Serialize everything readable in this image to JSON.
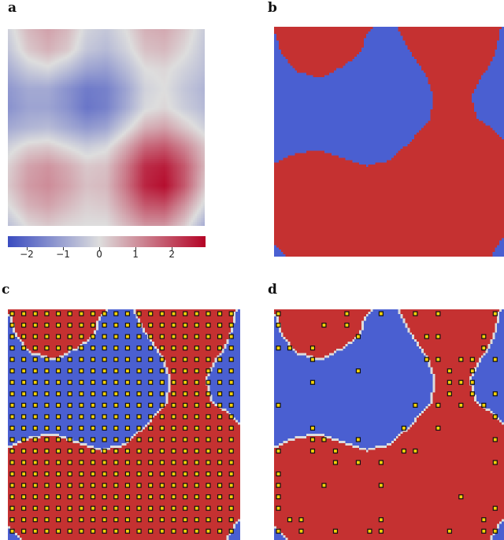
{
  "panels": {
    "a": {
      "label": "a"
    },
    "b": {
      "label": "b"
    },
    "c": {
      "label": "c"
    },
    "d": {
      "label": "d"
    }
  },
  "chart_data": [
    {
      "panel": "a",
      "type": "heatmap",
      "colormap": "coolwarm",
      "colors": {
        "low": "#3b4cc0",
        "mid": "#dddddd",
        "high": "#b40426"
      },
      "value_range": [
        -2.52,
        2.93
      ],
      "grid_note_rows": "top to bottom",
      "values": [
        [
          -0.2,
          0.5,
          0.8,
          0.5,
          -0.2,
          -0.4,
          0.0,
          0.6,
          0.7,
          0.3,
          -0.3
        ],
        [
          -0.4,
          0.3,
          0.6,
          0.3,
          -0.4,
          -0.6,
          -0.2,
          0.4,
          0.5,
          0.1,
          -0.4
        ],
        [
          -0.8,
          -0.3,
          -0.1,
          -0.5,
          -1.0,
          -1.1,
          -0.6,
          0.0,
          0.1,
          -0.2,
          -0.5
        ],
        [
          -1.2,
          -0.9,
          -0.9,
          -1.3,
          -1.7,
          -1.6,
          -1.0,
          -0.2,
          0.0,
          -0.4,
          -0.7
        ],
        [
          -1.3,
          -1.0,
          -1.0,
          -1.3,
          -1.8,
          -1.6,
          -0.9,
          -0.1,
          0.1,
          -0.3,
          -0.6
        ],
        [
          -0.9,
          -0.7,
          -0.6,
          -0.9,
          -1.2,
          -1.0,
          -0.2,
          0.6,
          0.8,
          0.3,
          -0.2
        ],
        [
          -0.2,
          0.2,
          0.3,
          0.0,
          -0.3,
          -0.1,
          0.7,
          1.6,
          1.8,
          1.2,
          0.4
        ],
        [
          0.2,
          0.8,
          1.0,
          0.7,
          0.3,
          0.4,
          1.3,
          2.4,
          2.6,
          1.8,
          0.6
        ],
        [
          0.3,
          0.9,
          1.1,
          0.8,
          0.4,
          0.5,
          1.4,
          2.5,
          2.8,
          1.8,
          0.4
        ],
        [
          0.0,
          0.6,
          0.8,
          0.5,
          0.2,
          0.3,
          1.0,
          1.8,
          1.9,
          1.0,
          -0.1
        ],
        [
          -0.5,
          0.1,
          0.3,
          0.1,
          0.0,
          0.0,
          0.5,
          1.0,
          1.0,
          0.3,
          -0.8
        ]
      ],
      "colorbar": {
        "ticks": [
          -2,
          -1,
          0,
          1,
          2
        ],
        "tick_labels": [
          "−2",
          "−1",
          "0",
          "1",
          "2"
        ]
      }
    },
    {
      "panel": "b",
      "type": "heatmap",
      "description_classes": [
        "positive",
        "negative"
      ],
      "colors": {
        "positive": "#c53131",
        "negative": "#4a5fd1"
      }
    },
    {
      "panel": "c",
      "type": "heatmap",
      "colors": {
        "positive": "#c53131",
        "negative": "#4a5fd1",
        "boundary": "#dcdcdc",
        "point": "#f5d20a"
      },
      "sample_grid": [
        20,
        20
      ],
      "sampling": "full grid"
    },
    {
      "panel": "d",
      "type": "heatmap",
      "colors": {
        "positive": "#c53131",
        "negative": "#4a5fd1",
        "boundary": "#dcdcdc",
        "point": "#f5d20a"
      },
      "sample_grid": [
        20,
        20
      ],
      "sample_points": [
        [
          0,
          0
        ],
        [
          6,
          0
        ],
        [
          9,
          0
        ],
        [
          12,
          0
        ],
        [
          14,
          0
        ],
        [
          19,
          0
        ],
        [
          0,
          1
        ],
        [
          4,
          1
        ],
        [
          6,
          1
        ],
        [
          7,
          2
        ],
        [
          13,
          2
        ],
        [
          14,
          2
        ],
        [
          18,
          2
        ],
        [
          0,
          3
        ],
        [
          1,
          3
        ],
        [
          3,
          3
        ],
        [
          18,
          3
        ],
        [
          3,
          4
        ],
        [
          13,
          4
        ],
        [
          14,
          4
        ],
        [
          16,
          4
        ],
        [
          17,
          4
        ],
        [
          19,
          4
        ],
        [
          7,
          5
        ],
        [
          15,
          5
        ],
        [
          17,
          5
        ],
        [
          3,
          6
        ],
        [
          15,
          6
        ],
        [
          16,
          6
        ],
        [
          17,
          6
        ],
        [
          15,
          7
        ],
        [
          17,
          7
        ],
        [
          19,
          7
        ],
        [
          0,
          8
        ],
        [
          12,
          8
        ],
        [
          14,
          8
        ],
        [
          16,
          8
        ],
        [
          18,
          8
        ],
        [
          19,
          9
        ],
        [
          3,
          10
        ],
        [
          11,
          10
        ],
        [
          14,
          10
        ],
        [
          3,
          11
        ],
        [
          4,
          11
        ],
        [
          7,
          11
        ],
        [
          19,
          11
        ],
        [
          0,
          12
        ],
        [
          3,
          12
        ],
        [
          5,
          12
        ],
        [
          11,
          12
        ],
        [
          12,
          12
        ],
        [
          5,
          13
        ],
        [
          7,
          13
        ],
        [
          9,
          13
        ],
        [
          19,
          13
        ],
        [
          0,
          14
        ],
        [
          0,
          15
        ],
        [
          4,
          15
        ],
        [
          9,
          15
        ],
        [
          0,
          16
        ],
        [
          16,
          16
        ],
        [
          0,
          17
        ],
        [
          19,
          17
        ],
        [
          1,
          18
        ],
        [
          2,
          18
        ],
        [
          9,
          18
        ],
        [
          18,
          18
        ],
        [
          0,
          19
        ],
        [
          2,
          19
        ],
        [
          5,
          19
        ],
        [
          8,
          19
        ],
        [
          9,
          19
        ],
        [
          15,
          19
        ],
        [
          18,
          19
        ],
        [
          19,
          19
        ]
      ]
    }
  ]
}
